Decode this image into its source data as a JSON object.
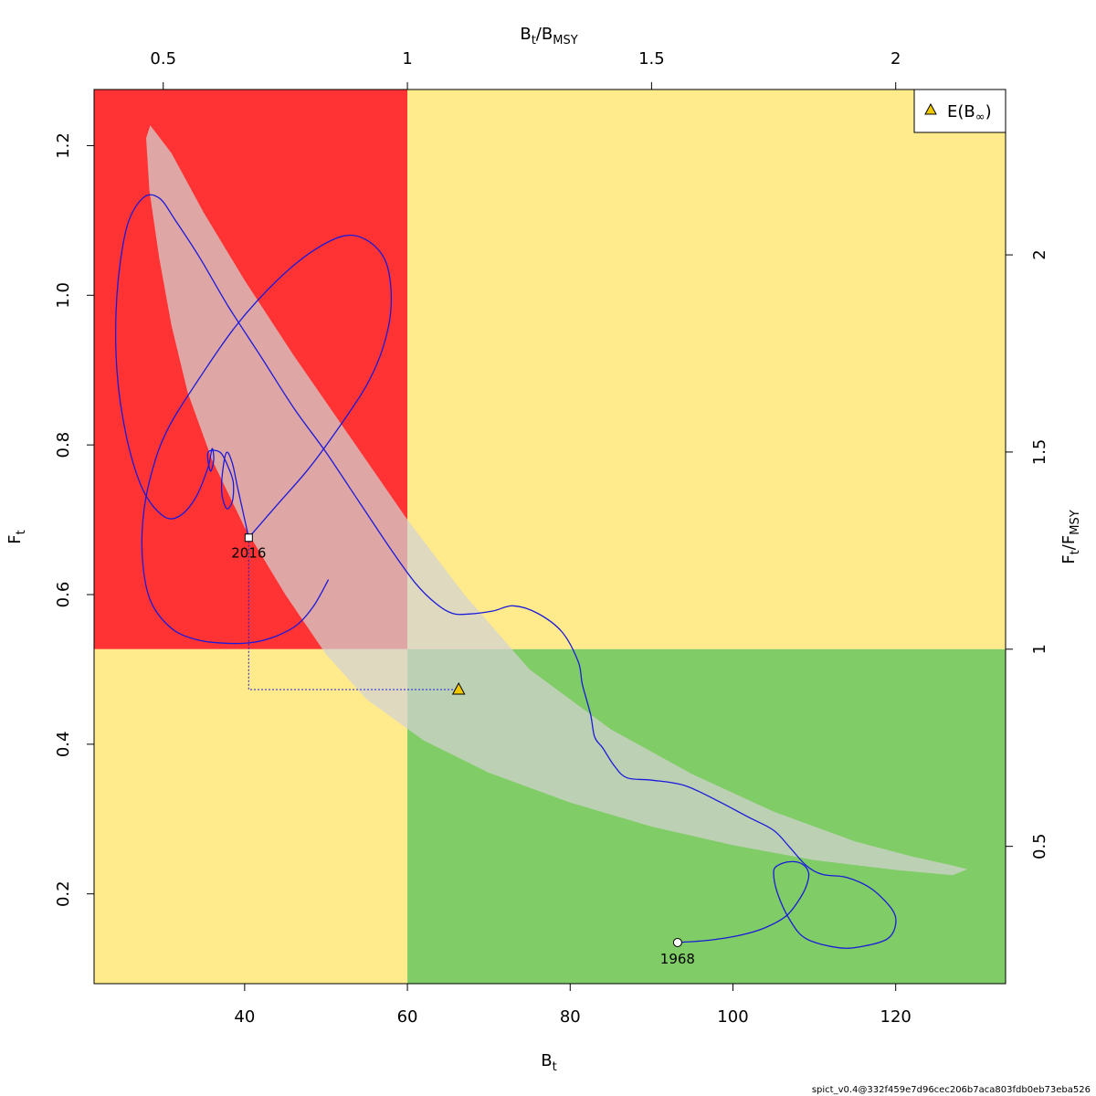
{
  "chart_data": {
    "type": "line",
    "xlabel": "B",
    "xlabel_sub": "t",
    "ylabel": "F",
    "ylabel_sub": "t",
    "top_axis_label": {
      "num": "B",
      "num_sub": "t",
      "den": "B",
      "den_sub": "MSY"
    },
    "right_axis_label": {
      "num": "F",
      "num_sub": "t",
      "den": "F",
      "den_sub": "MSY"
    },
    "xlim": [
      21.5,
      133.5
    ],
    "ylim": [
      0.08,
      1.275
    ],
    "x_ticks": [
      40,
      60,
      80,
      100,
      120
    ],
    "y_ticks": [
      0.2,
      0.4,
      0.6,
      0.8,
      1.0,
      1.2
    ],
    "x_tick_labels": [
      "40",
      "60",
      "80",
      "100",
      "120"
    ],
    "y_tick_labels": [
      "0.2",
      "0.4",
      "0.6",
      "0.8",
      "1.0",
      "1.2"
    ],
    "bmsy": 60.0,
    "fmsy": 0.527,
    "top_ticks": [
      0.5,
      1,
      1.5,
      2
    ],
    "top_tick_labels": [
      "0.5",
      "1",
      "1.5",
      "2"
    ],
    "right_ticks": [
      0.5,
      1,
      1.5,
      2
    ],
    "right_tick_labels": [
      "0.5",
      "1",
      "1.5",
      "2"
    ],
    "zones": {
      "red": "#ff3333",
      "yellow": "#ffea8c",
      "green": "#80cc66"
    },
    "confidence_ellipse_color": "#d3d3d3",
    "trajectory_color": "#1a1adb",
    "trajectory": [
      [
        93.2,
        0.135
      ],
      [
        97,
        0.138
      ],
      [
        101,
        0.145
      ],
      [
        104,
        0.155
      ],
      [
        106.5,
        0.17
      ],
      [
        108,
        0.19
      ],
      [
        109,
        0.21
      ],
      [
        109.3,
        0.228
      ],
      [
        108.5,
        0.24
      ],
      [
        107,
        0.243
      ],
      [
        105.5,
        0.238
      ],
      [
        105,
        0.228
      ],
      [
        105.5,
        0.2
      ],
      [
        107,
        0.165
      ],
      [
        109,
        0.14
      ],
      [
        113,
        0.128
      ],
      [
        116,
        0.13
      ],
      [
        119,
        0.14
      ],
      [
        120,
        0.16
      ],
      [
        119.5,
        0.18
      ],
      [
        117,
        0.207
      ],
      [
        114,
        0.222
      ],
      [
        111,
        0.226
      ],
      [
        109,
        0.238
      ],
      [
        107,
        0.262
      ],
      [
        105,
        0.285
      ],
      [
        102,
        0.302
      ],
      [
        98,
        0.325
      ],
      [
        94,
        0.345
      ],
      [
        90,
        0.352
      ],
      [
        87,
        0.355
      ],
      [
        85.5,
        0.37
      ],
      [
        84,
        0.395
      ],
      [
        83,
        0.41
      ],
      [
        82.5,
        0.44
      ],
      [
        81.5,
        0.48
      ],
      [
        81,
        0.51
      ],
      [
        79,
        0.55
      ],
      [
        76,
        0.575
      ],
      [
        73,
        0.585
      ],
      [
        70.5,
        0.578
      ],
      [
        67.5,
        0.574
      ],
      [
        65.5,
        0.575
      ],
      [
        63.5,
        0.588
      ],
      [
        61,
        0.615
      ],
      [
        58,
        0.66
      ],
      [
        54,
        0.725
      ],
      [
        50,
        0.79
      ],
      [
        46,
        0.85
      ],
      [
        42,
        0.918
      ],
      [
        38,
        0.985
      ],
      [
        34.5,
        1.05
      ],
      [
        31.5,
        1.1
      ],
      [
        29.5,
        1.13
      ],
      [
        27.5,
        1.13
      ],
      [
        25.5,
        1.09
      ],
      [
        24.3,
        1.0
      ],
      [
        24.3,
        0.9
      ],
      [
        25.5,
        0.81
      ],
      [
        27.5,
        0.74
      ],
      [
        30,
        0.705
      ],
      [
        32,
        0.705
      ],
      [
        34,
        0.73
      ],
      [
        35.5,
        0.77
      ],
      [
        36,
        0.795
      ],
      [
        36.2,
        0.78
      ],
      [
        35.8,
        0.765
      ],
      [
        35.5,
        0.79
      ],
      [
        37,
        0.79
      ],
      [
        38,
        0.77
      ],
      [
        38.6,
        0.75
      ],
      [
        38.5,
        0.725
      ],
      [
        37.8,
        0.715
      ],
      [
        37.2,
        0.735
      ],
      [
        37.3,
        0.765
      ],
      [
        37.8,
        0.79
      ],
      [
        38.5,
        0.775
      ],
      [
        39.2,
        0.74
      ],
      [
        40.5,
        0.676
      ]
    ],
    "trajectory_b": [
      [
        40.5,
        0.676
      ],
      [
        44,
        0.72
      ],
      [
        48,
        0.77
      ],
      [
        52,
        0.83
      ],
      [
        55,
        0.88
      ],
      [
        57,
        0.93
      ],
      [
        58,
        0.985
      ],
      [
        57.5,
        1.04
      ],
      [
        55.5,
        1.07
      ],
      [
        52.5,
        1.08
      ],
      [
        48.5,
        1.06
      ],
      [
        44,
        1.02
      ],
      [
        39,
        0.96
      ],
      [
        34.5,
        0.89
      ],
      [
        30.5,
        0.82
      ],
      [
        28.5,
        0.76
      ],
      [
        27.5,
        0.7
      ],
      [
        27.5,
        0.64
      ],
      [
        28.5,
        0.59
      ],
      [
        31,
        0.555
      ],
      [
        34,
        0.54
      ],
      [
        37.5,
        0.535
      ],
      [
        41,
        0.536
      ],
      [
        44,
        0.545
      ],
      [
        46.5,
        0.56
      ],
      [
        48.5,
        0.585
      ],
      [
        50.3,
        0.62
      ]
    ],
    "ellipse": {
      "center": [
        52.7,
        0.68
      ],
      "note": "banana-shaped confidence region"
    },
    "start_point": {
      "x": 93.2,
      "y": 0.135,
      "label": "1968"
    },
    "end_point": {
      "x": 40.5,
      "y": 0.676,
      "label": "2016"
    },
    "equilibrium": {
      "x": 66.3,
      "y": 0.473
    },
    "legend": {
      "label": "E(B",
      "label_sub": "∞",
      "label_end": ")",
      "position": "top-right"
    },
    "footer": "spict_v0.4@332f459e7d96cec206b7aca803fdb0eb73eba526"
  }
}
